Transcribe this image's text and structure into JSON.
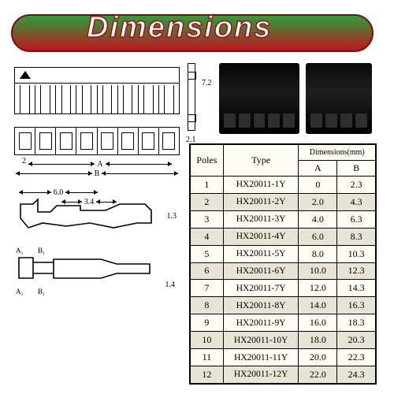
{
  "banner": {
    "title": "Dimensions",
    "gradient_top": "#2aa03a",
    "gradient_bottom": "#c1151c",
    "border": "#7a0e12",
    "title_color": "#ffffff",
    "title_stroke": "#9a0f14"
  },
  "diagram_labels": {
    "dim_2": "2",
    "dim_A": "A",
    "dim_B": "B",
    "dim_6_0": "6.0",
    "dim_3_4": "3.4",
    "dim_1_3": "1.3",
    "dim_1_4": "1.4",
    "dim_7_2": "7.2",
    "dim_2_1": "2.1",
    "Ai": "A₁",
    "Bi": "B₁"
  },
  "table": {
    "header_super": "Dimensions(mm)",
    "cols": [
      "Poles",
      "Type",
      "A",
      "B"
    ],
    "rows": [
      [
        "1",
        "HX20011-1Y",
        "0",
        "2.3"
      ],
      [
        "2",
        "HX20011-2Y",
        "2.0",
        "4.3"
      ],
      [
        "3",
        "HX20011-3Y",
        "4.0",
        "6.3"
      ],
      [
        "4",
        "HX20011-4Y",
        "6.0",
        "8.3"
      ],
      [
        "5",
        "HX20011-5Y",
        "8.0",
        "10.3"
      ],
      [
        "6",
        "HX20011-6Y",
        "10.0",
        "12.3"
      ],
      [
        "7",
        "HX20011-7Y",
        "12.0",
        "14.3"
      ],
      [
        "8",
        "HX20011-8Y",
        "14.0",
        "16.3"
      ],
      [
        "9",
        "HX20011-9Y",
        "16.0",
        "18.3"
      ],
      [
        "10",
        "HX20011-10Y",
        "18.0",
        "20.3"
      ],
      [
        "11",
        "HX20011-11Y",
        "20.0",
        "22.3"
      ],
      [
        "12",
        "HX20011-12Y",
        "22.0",
        "24.3"
      ]
    ],
    "bg": "#fefdf1",
    "alt_bg": "#e8e4d5",
    "border": "#000000",
    "fontsize": 12
  },
  "photos": {
    "connector_5pin": {
      "color": "#000000",
      "ports": 5
    },
    "connector_4pin": {
      "color": "#000000",
      "ports": 4
    }
  }
}
